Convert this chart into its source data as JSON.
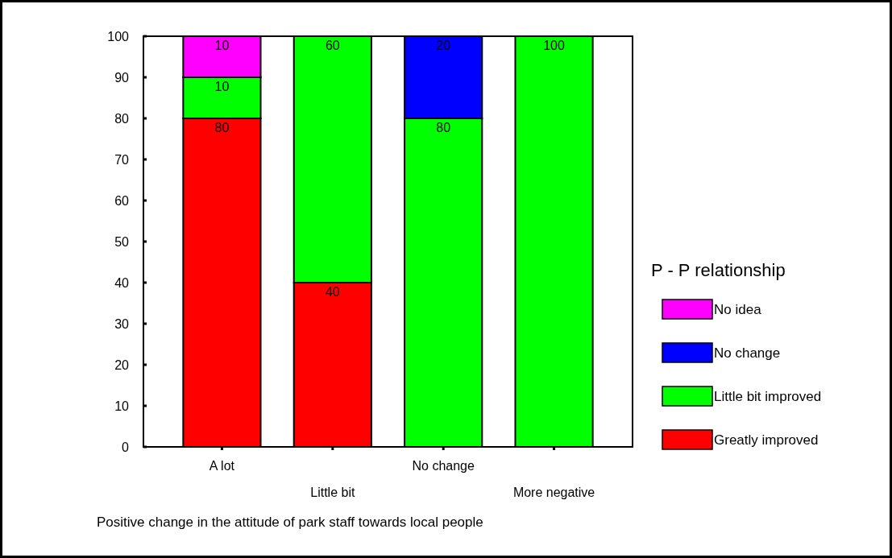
{
  "chart_data": {
    "type": "bar",
    "stacked": true,
    "categories": [
      "A lot",
      "Little bit",
      "No change",
      "More negative"
    ],
    "series": [
      {
        "name": "Greatly improved",
        "color": "#ff0000",
        "values": [
          80,
          40,
          null,
          null
        ]
      },
      {
        "name": "Little bit improved",
        "color": "#00ff00",
        "values": [
          10,
          60,
          80,
          100
        ]
      },
      {
        "name": "No change",
        "color": "#0000ff",
        "values": [
          null,
          null,
          20,
          null
        ]
      },
      {
        "name": "No idea",
        "color": "#ff00ff",
        "values": [
          10,
          null,
          null,
          null
        ]
      }
    ],
    "ylim": [
      0,
      100
    ],
    "yticks": [
      0,
      10,
      20,
      30,
      40,
      50,
      60,
      70,
      80,
      90,
      100
    ],
    "xlabel": "Positive change in the attitude of park staff towards local people",
    "legend_title": "P - P relationship",
    "legend": "right",
    "data_labels": true,
    "grid": false
  }
}
